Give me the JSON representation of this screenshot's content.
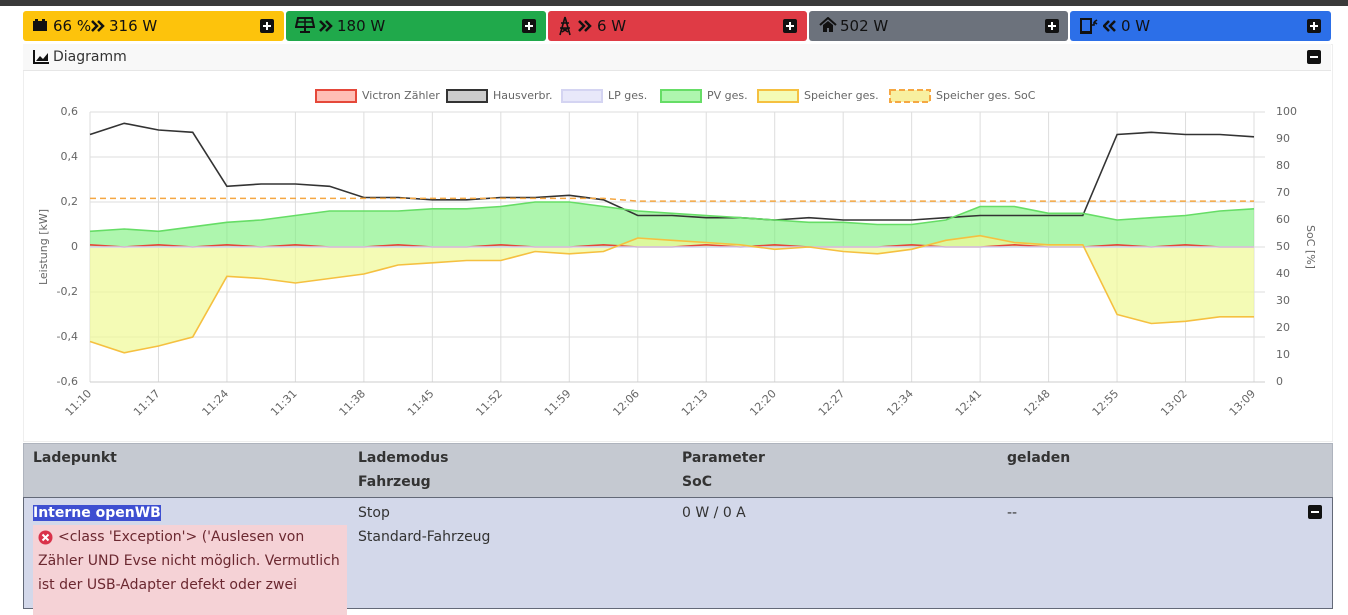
{
  "status_bar": {
    "battery": {
      "soc": "66 %",
      "power": "316 W"
    },
    "pv": "180 W",
    "grid": "6 W",
    "house": "502 W",
    "charge": "0 W"
  },
  "diagram": {
    "title": "Diagramm"
  },
  "chart_data": {
    "type": "line",
    "categories": [
      "11:10",
      null,
      "11:17",
      null,
      "11:24",
      null,
      "11:31",
      null,
      "11:38",
      null,
      "11:45",
      null,
      "11:52",
      null,
      "11:59",
      null,
      "12:06",
      null,
      "12:13",
      null,
      "12:20",
      null,
      "12:27",
      null,
      "12:34",
      null,
      "12:41",
      null,
      "12:48",
      null,
      "12:55",
      null,
      "13:02",
      null,
      "13:09"
    ],
    "series": [
      {
        "name": "Victron Zähler",
        "color": "#e5483a",
        "fill": "rgba(255,110,90,0.45)",
        "area": true,
        "values": [
          0.01,
          0,
          0.01,
          0,
          0.01,
          0,
          0.01,
          0,
          0,
          0.01,
          0,
          0,
          0.01,
          0,
          0,
          0.01,
          0,
          0,
          0.01,
          0,
          0.01,
          0,
          0,
          0,
          0.01,
          0,
          0,
          0.01,
          0,
          0,
          0.01,
          0,
          0.01,
          0,
          0
        ]
      },
      {
        "name": "Hausverbr.",
        "color": "#333333",
        "fill": "#cccccc",
        "area": false,
        "values": [
          0.5,
          0.55,
          0.52,
          0.51,
          0.27,
          0.28,
          0.28,
          0.27,
          0.22,
          0.22,
          0.21,
          0.21,
          0.22,
          0.22,
          0.23,
          0.21,
          0.14,
          0.14,
          0.13,
          0.13,
          0.12,
          0.13,
          0.12,
          0.12,
          0.12,
          0.13,
          0.14,
          0.14,
          0.14,
          0.14,
          0.5,
          0.51,
          0.5,
          0.5,
          0.49
        ]
      },
      {
        "name": "LP ges.",
        "color": "#d4d4f2",
        "fill": "#e8e8fa",
        "area": false,
        "values": [
          0,
          0,
          0,
          0,
          0,
          0,
          0,
          0,
          0,
          0,
          0,
          0,
          0,
          0,
          0,
          0,
          0,
          0,
          0,
          0,
          0,
          0,
          0,
          0,
          0,
          0,
          0,
          0,
          0,
          0,
          0,
          0,
          0,
          0,
          0
        ]
      },
      {
        "name": "PV ges.",
        "color": "#66dd66",
        "fill": "rgba(120,240,120,0.6)",
        "area": true,
        "values": [
          0.07,
          0.08,
          0.07,
          0.09,
          0.11,
          0.12,
          0.14,
          0.16,
          0.16,
          0.16,
          0.17,
          0.17,
          0.18,
          0.2,
          0.2,
          0.18,
          0.16,
          0.15,
          0.14,
          0.13,
          0.12,
          0.11,
          0.11,
          0.1,
          0.1,
          0.12,
          0.18,
          0.18,
          0.15,
          0.15,
          0.12,
          0.13,
          0.14,
          0.16,
          0.17
        ]
      },
      {
        "name": "Speicher ges.",
        "color": "#f5c040",
        "fill": "rgba(240,250,150,0.7)",
        "area": true,
        "values": [
          -0.42,
          -0.47,
          -0.44,
          -0.4,
          -0.13,
          -0.14,
          -0.16,
          -0.14,
          -0.12,
          -0.08,
          -0.07,
          -0.06,
          -0.06,
          -0.02,
          -0.03,
          -0.02,
          0.04,
          0.03,
          0.02,
          0.01,
          -0.01,
          0,
          -0.02,
          -0.03,
          -0.01,
          0.03,
          0.05,
          0.02,
          0.01,
          0.01,
          -0.3,
          -0.34,
          -0.33,
          -0.31,
          -0.31
        ]
      },
      {
        "name": "Speicher ges. SoC",
        "color": "#f5a742",
        "fill": "#f8f0a0",
        "area": false,
        "dashed": true,
        "axis": "y2",
        "values": [
          68,
          68,
          68,
          68,
          68,
          68,
          68,
          68,
          68,
          68,
          68,
          68,
          68,
          68,
          68,
          68,
          67,
          67,
          67,
          67,
          67,
          67,
          67,
          67,
          67,
          67,
          67,
          67,
          67,
          67,
          67,
          67,
          67,
          67,
          67
        ]
      }
    ],
    "ylabel": "Leistung [kW]",
    "y2label": "SoC [%]",
    "ylim": [
      -0.6,
      0.6
    ],
    "yticks": [
      {
        "value": 0.6,
        "label": "0,6"
      },
      {
        "value": 0.4,
        "label": "0,4"
      },
      {
        "value": 0.2,
        "label": "0,2"
      },
      0,
      {
        "value": -0.2,
        "label": "-0,2"
      },
      {
        "value": -0.4,
        "label": "-0,4"
      },
      {
        "value": -0.6,
        "label": "-0,6"
      }
    ],
    "y2lim": [
      0,
      100
    ],
    "y2ticks": [
      0,
      10,
      20,
      30,
      40,
      50,
      60,
      70,
      80,
      90,
      100
    ],
    "grid": true
  },
  "table": {
    "headers": [
      [
        "Ladepunkt"
      ],
      [
        "Lademodus",
        "Fahrzeug"
      ],
      [
        "Parameter",
        "SoC"
      ],
      [
        "geladen"
      ]
    ],
    "row": {
      "name": "Interne openWB",
      "error": "<class 'Exception'> ('Auslesen von Zähler UND Evse nicht möglich. Vermutlich ist der USB-Adapter defekt oder zwei",
      "mode": "Stop",
      "vehicle": "Standard-Fahrzeug",
      "parameter": "0 W / 0 A",
      "charged": "--"
    }
  }
}
